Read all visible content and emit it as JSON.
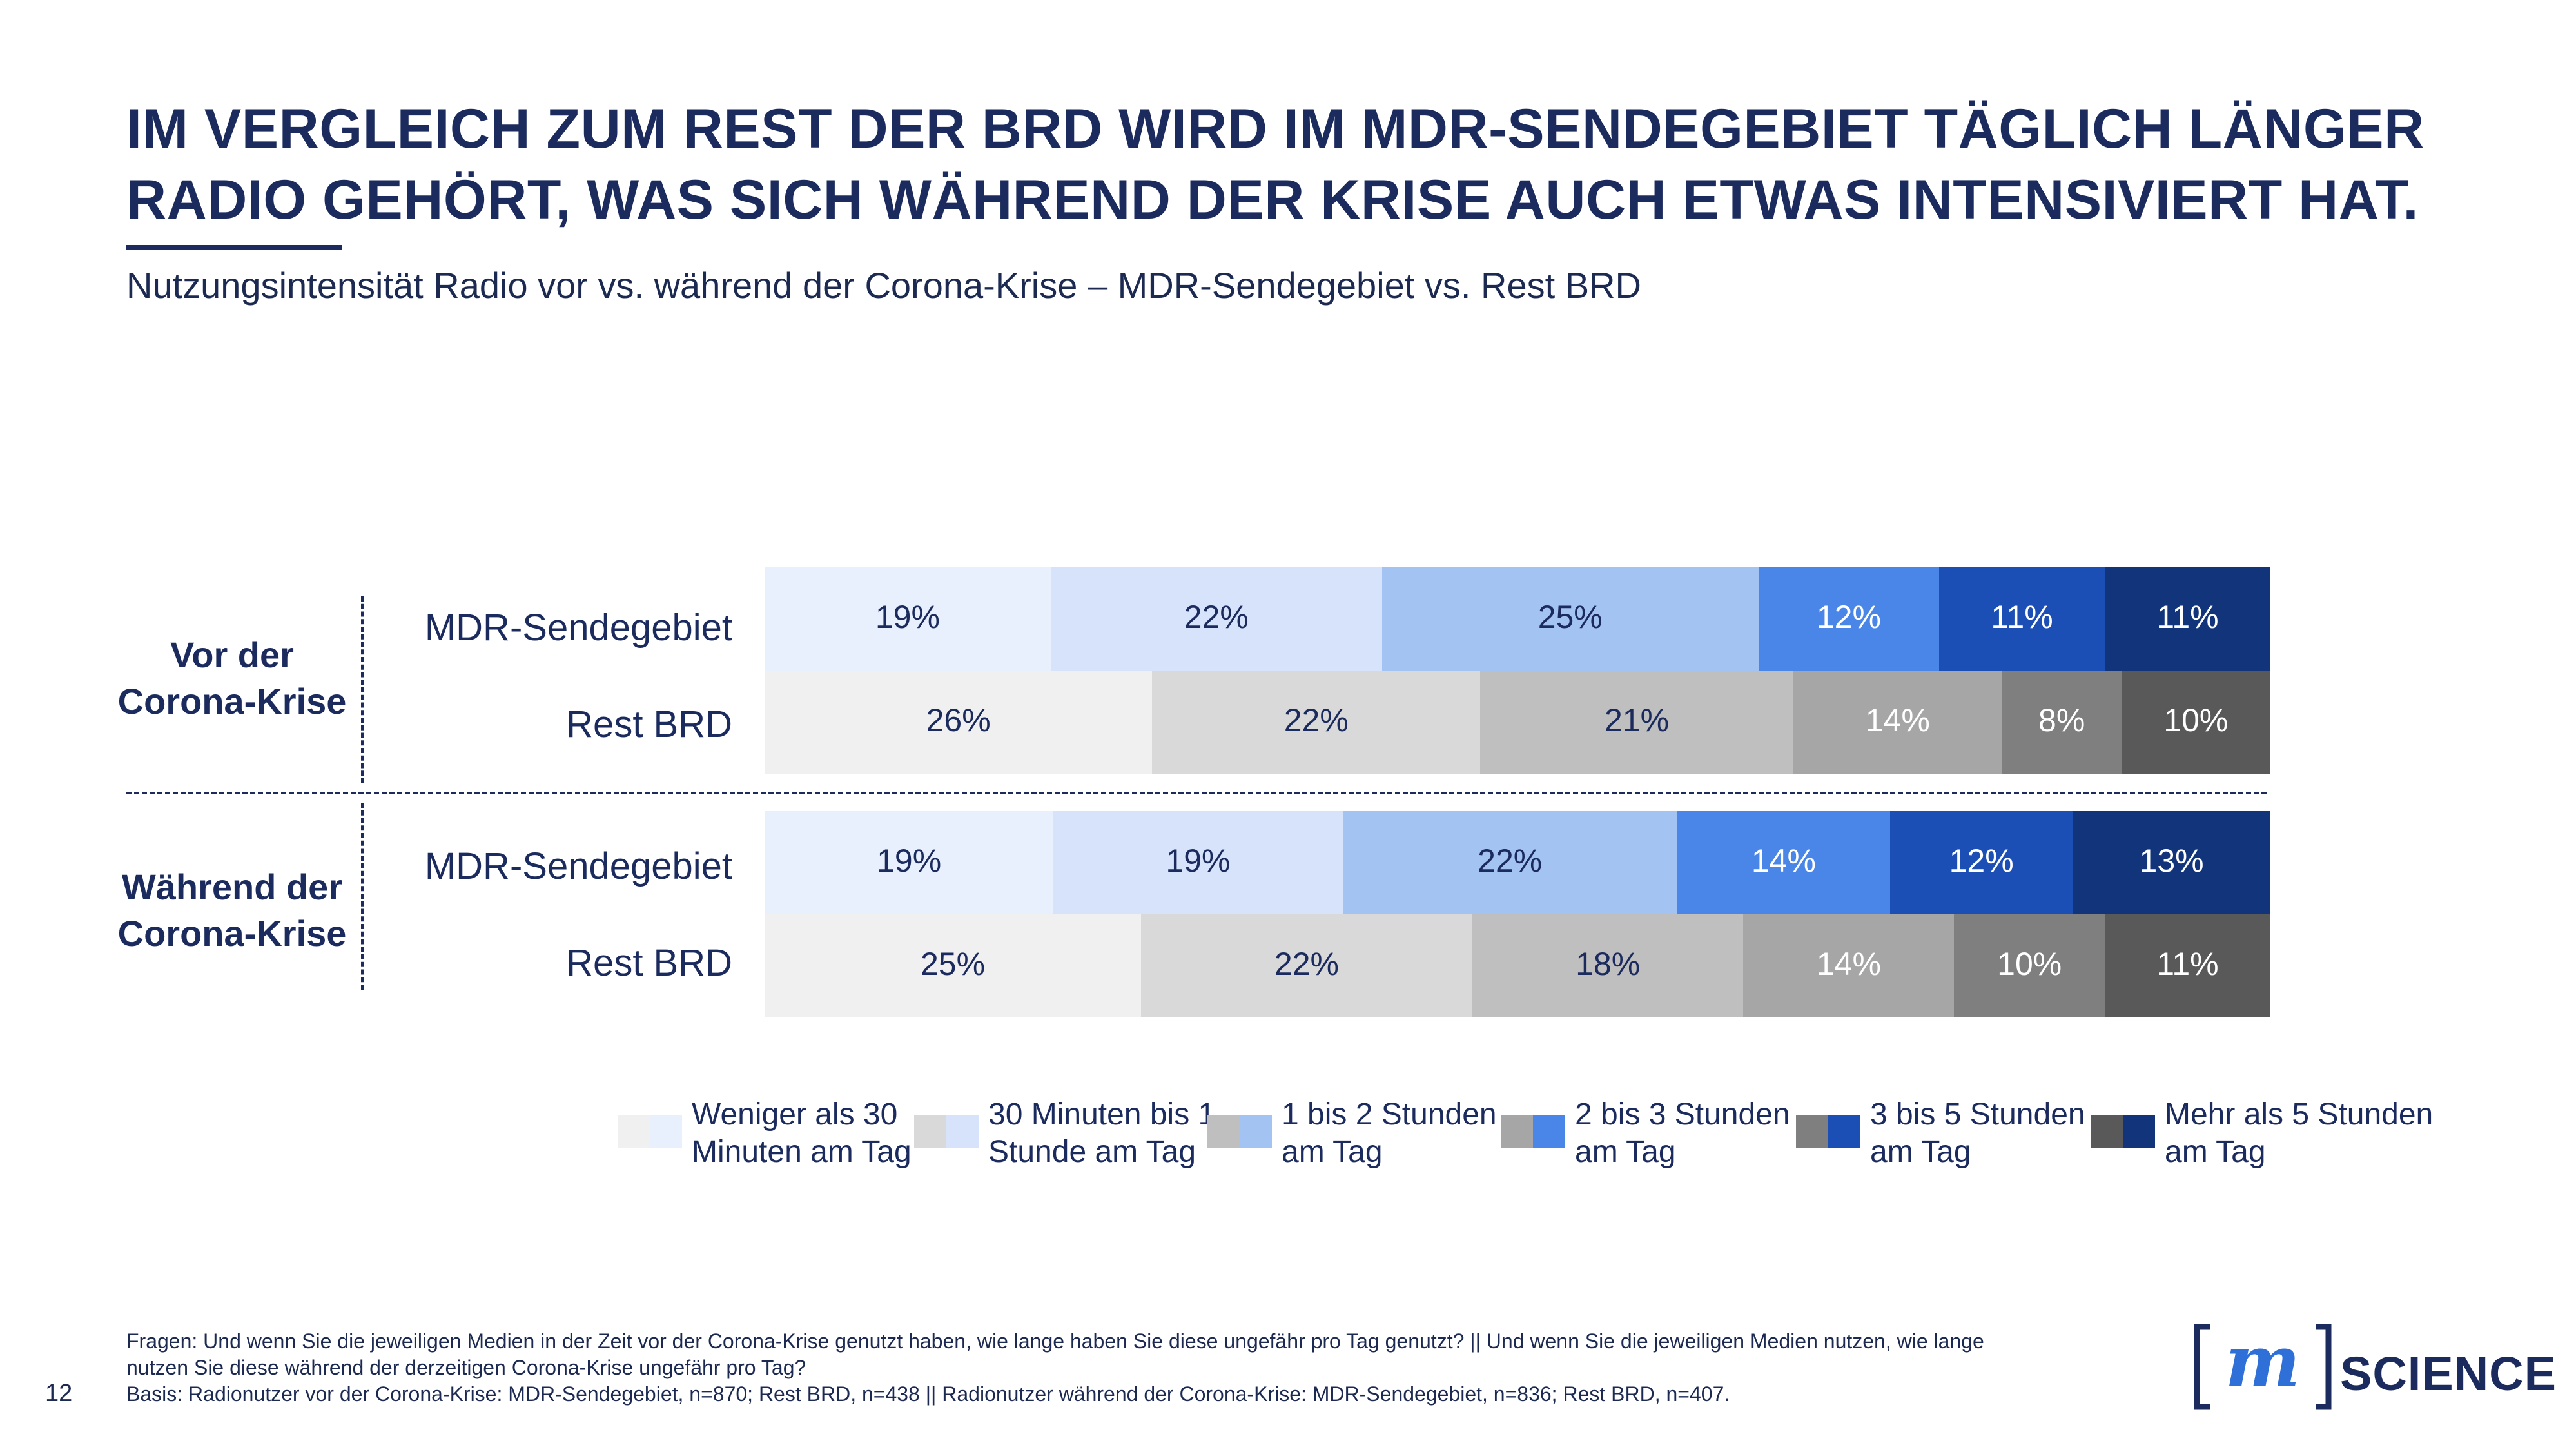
{
  "title": {
    "line1": "IM VERGLEICH ZUM REST DER BRD WIRD IM MDR-SENDEGEBIET TÄGLICH LÄNGER",
    "line2": "RADIO GEHÖRT, WAS SICH WÄHREND DER KRISE AUCH ETWAS INTENSIVIERT HAT."
  },
  "subtitle": "Nutzungsintensität Radio vor vs. während der Corona-Krise – MDR-Sendegebiet vs. Rest BRD",
  "chart_data": {
    "type": "bar",
    "orientation": "horizontal-stacked-100",
    "groups": [
      {
        "label_line1": "Vor der",
        "label_line2": "Corona-Krise",
        "rows": [
          {
            "label": "MDR-Sendegebiet",
            "palette": "blue",
            "values": [
              19,
              22,
              25,
              12,
              11,
              11
            ],
            "labels": [
              "19%",
              "22%",
              "25%",
              "12%",
              "11%",
              "11%"
            ]
          },
          {
            "label": "Rest BRD",
            "palette": "grey",
            "values": [
              26,
              22,
              21,
              14,
              8,
              10
            ],
            "labels": [
              "26%",
              "22%",
              "21%",
              "14%",
              "8%",
              "10%"
            ]
          }
        ]
      },
      {
        "label_line1": "Während der",
        "label_line2": "Corona-Krise",
        "rows": [
          {
            "label": "MDR-Sendegebiet",
            "palette": "blue",
            "values": [
              19,
              19,
              22,
              14,
              12,
              13
            ],
            "labels": [
              "19%",
              "19%",
              "22%",
              "14%",
              "12%",
              "13%"
            ]
          },
          {
            "label": "Rest BRD",
            "palette": "grey",
            "values": [
              25,
              22,
              18,
              14,
              10,
              11
            ],
            "labels": [
              "25%",
              "22%",
              "18%",
              "14%",
              "10%",
              "11%"
            ]
          }
        ]
      }
    ],
    "legend": [
      {
        "line1": "Weniger als 30",
        "line2": "Minuten am Tag"
      },
      {
        "line1": "30 Minuten bis 1",
        "line2": "Stunde am Tag"
      },
      {
        "line1": "1 bis 2 Stunden",
        "line2": "am Tag"
      },
      {
        "line1": "2 bis 3 Stunden",
        "line2": "am Tag"
      },
      {
        "line1": "3 bis 5 Stunden",
        "line2": "am Tag"
      },
      {
        "line1": "Mehr als 5 Stunden",
        "line2": "am Tag"
      }
    ],
    "colors": {
      "blue": [
        "#e8f0fd",
        "#d6e3fb",
        "#a3c3f2",
        "#4a86e8",
        "#1b4fb5",
        "#11347a"
      ],
      "grey": [
        "#f0f0f0",
        "#d9d9d9",
        "#bfbfbf",
        "#a6a6a6",
        "#7f7f7f",
        "#595959"
      ],
      "blue_text": [
        "#1b2b5e",
        "#1b2b5e",
        "#1b2b5e",
        "#ffffff",
        "#ffffff",
        "#ffffff"
      ],
      "grey_text": [
        "#1b2b5e",
        "#1b2b5e",
        "#1b2b5e",
        "#ffffff",
        "#ffffff",
        "#ffffff"
      ]
    },
    "xlim": [
      0,
      100
    ],
    "legend_position": "bottom"
  },
  "footnote": {
    "line1": "Fragen: Und wenn Sie die jeweiligen Medien in der Zeit vor der Corona-Krise genutzt haben, wie lange haben Sie diese ungefähr pro Tag genutzt? || Und wenn Sie die jeweiligen Medien nutzen, wie lange",
    "line2": "nutzen Sie diese während der derzeitigen Corona-Krise ungefähr pro Tag?",
    "line3": "Basis: Radionutzer vor der Corona-Krise: MDR-Sendegebiet, n=870; Rest BRD, n=438 || Radionutzer während der Corona-Krise: MDR-Sendegebiet, n=836; Rest BRD, n=407."
  },
  "page_number": "12",
  "logo": {
    "mark": "m",
    "text": "SCIENCE"
  }
}
